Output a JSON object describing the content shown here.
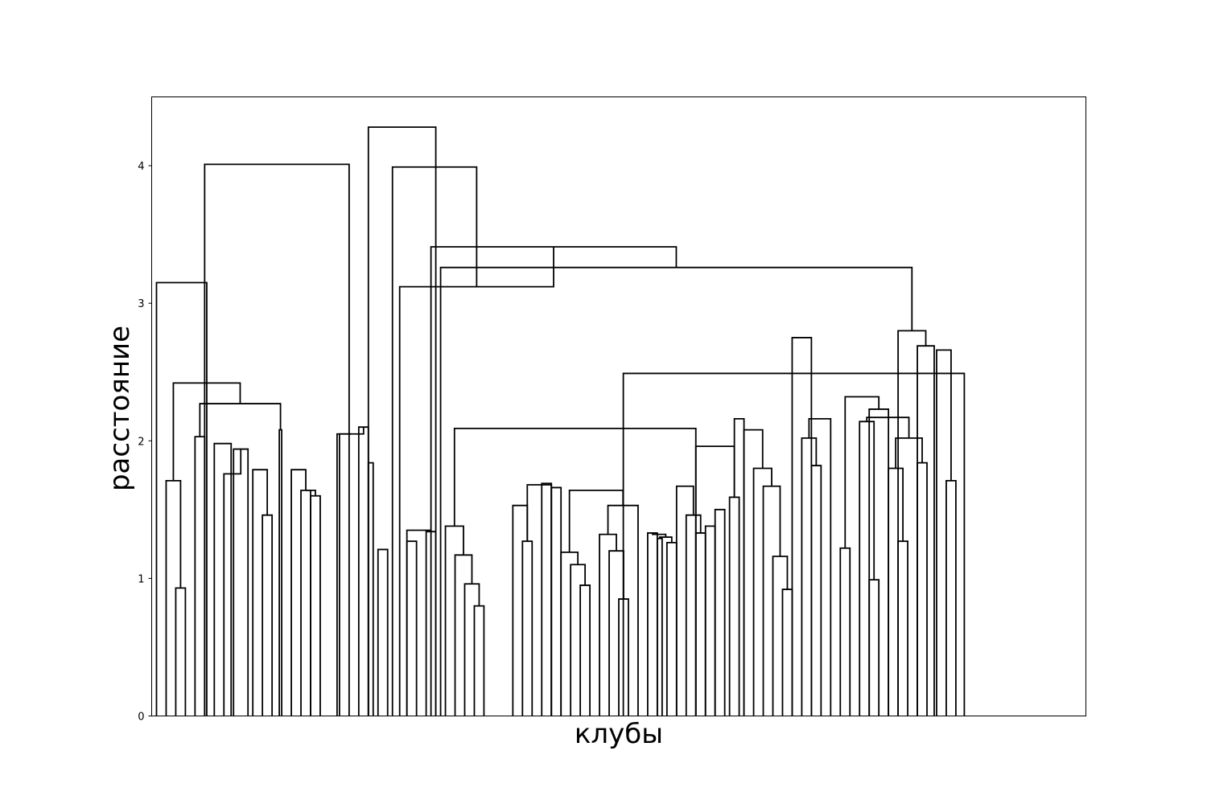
{
  "chart_data": {
    "type": "dendrogram",
    "title": "",
    "xlabel": "клубы",
    "ylabel": "расстояние",
    "ylim": [
      0,
      4.5
    ],
    "yticks": [
      0,
      1,
      2,
      3,
      4
    ],
    "ytick_labels": [
      "0",
      "1",
      "2",
      "3",
      "4"
    ],
    "x_tick_labels_shown": false,
    "grid": false,
    "line_color": "#000000",
    "leaf_count": 97,
    "links": [
      [
        2,
        3,
        0.93
      ],
      [
        1,
        2.5,
        1.71
      ],
      [
        8,
        9.5,
        1.94
      ],
      [
        7,
        8.75,
        1.76
      ],
      [
        21,
        22,
        2.1
      ],
      [
        19,
        21.5,
        2.05
      ],
      [
        15,
        16,
        1.64
      ],
      [
        14,
        15.5,
        1.79
      ],
      [
        16,
        17,
        1.6
      ],
      [
        15.5,
        16.5,
        1.64
      ],
      [
        11,
        12,
        1.46
      ],
      [
        10,
        11.5,
        1.79
      ],
      [
        18.75,
        20.25,
        2.05
      ],
      [
        4,
        5,
        2.03
      ],
      [
        6,
        7.75,
        1.98
      ],
      [
        12.75,
        13,
        2.08
      ],
      [
        4.5,
        12.875,
        2.27
      ],
      [
        1.75,
        8.6875,
        2.42
      ],
      [
        0,
        5.22,
        3.15
      ],
      [
        26,
        28.5,
        1.35
      ],
      [
        23,
        24,
        1.21
      ],
      [
        22,
        22.5,
        1.84
      ],
      [
        28,
        29,
        1.34
      ],
      [
        33,
        34,
        0.8
      ],
      [
        32,
        33.5,
        0.96
      ],
      [
        31,
        32.75,
        1.17
      ],
      [
        30,
        31.875,
        1.38
      ],
      [
        26,
        27,
        1.27
      ],
      [
        38,
        39,
        1.27
      ],
      [
        37,
        38.5,
        1.53
      ],
      [
        38.5,
        41,
        1.68
      ],
      [
        40,
        41,
        1.69
      ],
      [
        44,
        45,
        0.95
      ],
      [
        43,
        44.5,
        1.1
      ],
      [
        42,
        43.75,
        1.19
      ],
      [
        48,
        49,
        0.85
      ],
      [
        47,
        48.5,
        1.2
      ],
      [
        46,
        47.75,
        1.32
      ],
      [
        46.875,
        50,
        1.53
      ],
      [
        51,
        52,
        1.33
      ],
      [
        52,
        52.5,
        1.29
      ],
      [
        53,
        54,
        1.26
      ],
      [
        52.25,
        53.5,
        1.3
      ],
      [
        51.5,
        52.875,
        1.32
      ],
      [
        42.875,
        48.4375,
        1.64
      ],
      [
        41,
        42,
        1.66
      ],
      [
        56,
        57,
        1.33
      ],
      [
        57,
        58,
        1.38
      ],
      [
        55,
        56.5,
        1.46
      ],
      [
        54,
        55.75,
        1.67
      ],
      [
        58,
        59,
        1.5
      ],
      [
        59.5,
        60.5,
        1.59
      ],
      [
        56,
        60,
        1.96
      ],
      [
        60,
        61,
        2.16
      ],
      [
        65,
        66,
        0.92
      ],
      [
        64,
        65.5,
        1.16
      ],
      [
        63,
        64.75,
        1.67
      ],
      [
        62,
        63.875,
        1.8
      ],
      [
        61,
        62.9375,
        2.08
      ],
      [
        68,
        69,
        1.82
      ],
      [
        67,
        68.5,
        2.02
      ],
      [
        67.75,
        70,
        2.16
      ],
      [
        71,
        72,
        1.22
      ],
      [
        74,
        75,
        0.99
      ],
      [
        73,
        74.5,
        2.14
      ],
      [
        77,
        78,
        1.27
      ],
      [
        76,
        77.5,
        1.8
      ],
      [
        79,
        80,
        1.84
      ],
      [
        76.75,
        79.5,
        2.02
      ],
      [
        73.75,
        78.125,
        2.17
      ],
      [
        74,
        76,
        2.23
      ],
      [
        71.5,
        75,
        2.32
      ],
      [
        82,
        83,
        1.71
      ],
      [
        81,
        82.5,
        2.66
      ],
      [
        79,
        80.75,
        2.69
      ],
      [
        66,
        68,
        2.75
      ],
      [
        30.9375,
        56,
        2.09
      ],
      [
        48.4688,
        83.875,
        2.49
      ],
      [
        77,
        79.875,
        2.8
      ],
      [
        29.5,
        78.4375,
        3.26
      ],
      [
        28.5,
        53.9688,
        3.41
      ],
      [
        25.25,
        41.2344,
        3.12
      ],
      [
        24.5,
        33.2422,
        3.99
      ],
      [
        5,
        20,
        4.01
      ],
      [
        22,
        29,
        4.28
      ]
    ]
  }
}
